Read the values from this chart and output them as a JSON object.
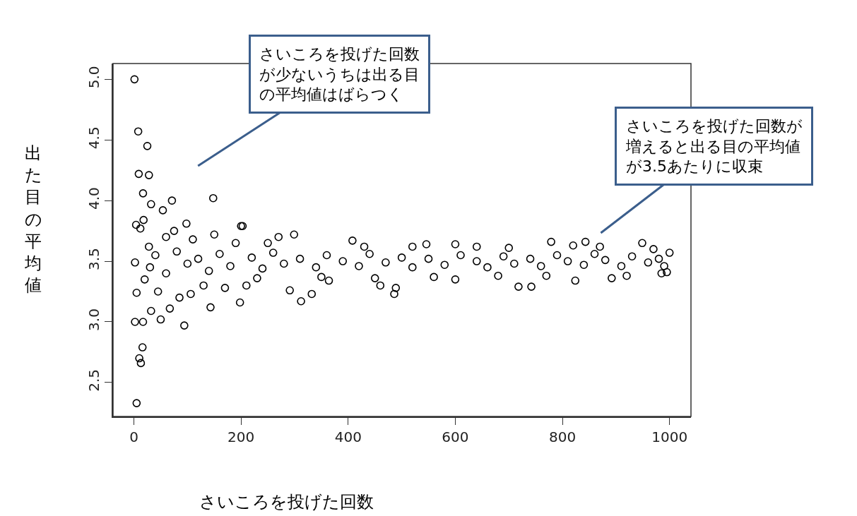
{
  "chart_data": {
    "type": "scatter",
    "xlabel": "さいころを投げた回数",
    "ylabel": "出た目の平均値",
    "annotations": [
      "さいころを投げた回数が少ないうちは出る目の平均値はばらつく",
      "さいころを投げた回数が増えると出る目の平均値が3.5あたりに収束"
    ],
    "series": [
      {
        "color": "#000000",
        "x": [
          1,
          8,
          25,
          9,
          28,
          17,
          148,
          71,
          32,
          54,
          4,
          12,
          18,
          2,
          5,
          2,
          17,
          50,
          94,
          16,
          10,
          13,
          5,
          28,
          67,
          32,
          198,
          143,
          106,
          200,
          98,
          312,
          291,
          332,
          486,
          489,
          299,
          408,
          203,
          546,
          600,
          460,
          364,
          718,
          742,
          824,
          779,
          843,
          949,
          995,
          1000,
          600,
          892,
          30,
          40,
          60,
          80,
          100,
          120,
          140,
          160,
          180,
          220,
          240,
          260,
          280,
          310,
          340,
          360,
          390,
          420,
          440,
          470,
          500,
          520,
          550,
          580,
          610,
          640,
          660,
          690,
          710,
          740,
          760,
          790,
          810,
          840,
          860,
          880,
          910,
          930,
          960,
          980,
          990,
          250,
          270,
          350,
          430,
          450,
          520,
          560,
          640,
          680,
          700,
          770,
          820,
          870,
          920,
          970,
          985,
          60,
          75,
          110,
          130,
          150,
          170,
          190,
          210,
          230,
          20,
          45,
          85
        ],
        "values": [
          5.0,
          4.57,
          4.45,
          4.22,
          4.21,
          4.06,
          4.02,
          4.0,
          3.97,
          3.92,
          3.8,
          3.77,
          3.84,
          3.49,
          3.24,
          3.0,
          3.0,
          3.02,
          2.97,
          2.79,
          2.7,
          2.66,
          2.33,
          3.62,
          3.11,
          3.09,
          3.16,
          3.12,
          3.23,
          3.79,
          3.81,
          3.17,
          3.26,
          3.23,
          3.23,
          3.28,
          3.72,
          3.67,
          3.79,
          3.64,
          3.64,
          3.3,
          3.34,
          3.29,
          3.29,
          3.34,
          3.66,
          3.66,
          3.65,
          3.41,
          3.57,
          3.35,
          3.36,
          3.45,
          3.55,
          3.4,
          3.58,
          3.48,
          3.52,
          3.42,
          3.56,
          3.46,
          3.53,
          3.44,
          3.57,
          3.48,
          3.52,
          3.45,
          3.55,
          3.5,
          3.46,
          3.56,
          3.49,
          3.53,
          3.45,
          3.52,
          3.47,
          3.55,
          3.5,
          3.45,
          3.54,
          3.48,
          3.52,
          3.46,
          3.55,
          3.5,
          3.47,
          3.56,
          3.51,
          3.46,
          3.54,
          3.49,
          3.52,
          3.46,
          3.65,
          3.7,
          3.37,
          3.62,
          3.36,
          3.62,
          3.37,
          3.62,
          3.38,
          3.61,
          3.38,
          3.63,
          3.62,
          3.38,
          3.6,
          3.4,
          3.7,
          3.75,
          3.68,
          3.3,
          3.72,
          3.28,
          3.65,
          3.3,
          3.36,
          3.35,
          3.25,
          3.2
        ]
      }
    ],
    "xlim": [
      -39,
      1040
    ],
    "ylim": [
      2.22,
      5.13
    ],
    "xticks": [
      0,
      200,
      400,
      600,
      800,
      1000
    ],
    "yticks": [
      2.5,
      {
        "value": 3,
        "label": "3.0"
      },
      3.5,
      {
        "value": 4,
        "label": "4.0"
      },
      4.5,
      {
        "value": 5,
        "label": "5.0"
      }
    ],
    "marker": "circle"
  }
}
